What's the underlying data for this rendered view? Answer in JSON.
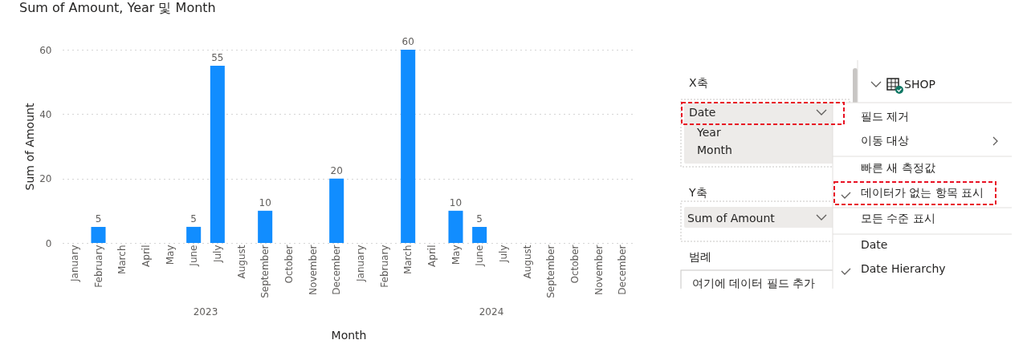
{
  "chart_data": [
    {
      "type": "bar",
      "title": "Sum of Amount, Year 및 Month",
      "xlabel": "Month",
      "ylabel": "Sum of Amount",
      "categories": [
        "January",
        "February",
        "March",
        "April",
        "May",
        "June",
        "July",
        "August",
        "September",
        "October",
        "November",
        "December",
        "January",
        "February",
        "March",
        "April",
        "May",
        "June",
        "July",
        "August",
        "September",
        "October",
        "November",
        "December"
      ],
      "values": [
        null,
        5,
        null,
        null,
        null,
        5,
        55,
        null,
        10,
        null,
        null,
        20,
        null,
        null,
        60,
        null,
        10,
        5,
        null,
        null,
        null,
        null,
        null,
        null
      ],
      "color": "#118dff",
      "ylim": [
        0,
        60
      ],
      "yticks": [
        0,
        20,
        40,
        60
      ],
      "grid": "y",
      "data_labels": true,
      "annotations": [
        "2023",
        "2024"
      ]
    },
    {
      "type": "other",
      "annotations": [
        "X축",
        "Date",
        "Year",
        "Month",
        "Y축",
        "Sum of Amount",
        "범례",
        "여기에 데이터 필드 추가",
        "SHOP",
        "필드 제거",
        "이동 대상",
        "빠른 새 측정값",
        "데이터가 없는 항목 표시",
        "모든 수준 표시",
        "Date",
        "Date Hierarchy"
      ]
    }
  ]
}
